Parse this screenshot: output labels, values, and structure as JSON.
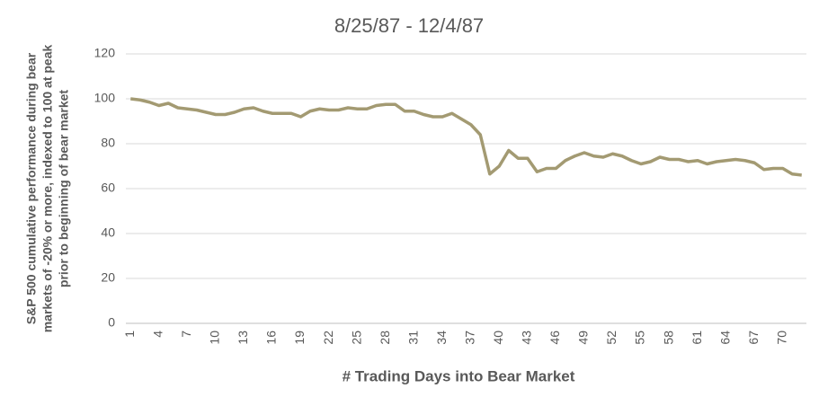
{
  "chart_data": {
    "type": "line",
    "title": "8/25/87 - 12/4/87",
    "x_label": "# Trading Days into Bear Market",
    "y_label": [
      "S&P 500 cumulative performance during bear",
      "markets of -20% or more, indexed to 100 at peak",
      "prior to beginning of bear market"
    ],
    "x": [
      1,
      2,
      3,
      4,
      5,
      6,
      7,
      8,
      9,
      10,
      11,
      12,
      13,
      14,
      15,
      16,
      17,
      18,
      19,
      20,
      21,
      22,
      23,
      24,
      25,
      26,
      27,
      28,
      29,
      30,
      31,
      32,
      33,
      34,
      35,
      36,
      37,
      38,
      39,
      40,
      41,
      42,
      43,
      44,
      45,
      46,
      47,
      48,
      49,
      50,
      51,
      52,
      53,
      54,
      55,
      56,
      57,
      58,
      59,
      60,
      61,
      62,
      63,
      64,
      65,
      66,
      67,
      68,
      69,
      70,
      71,
      72
    ],
    "values": [
      100,
      99.5,
      98.5,
      97,
      98,
      96,
      95.5,
      95,
      94,
      93,
      93,
      94,
      95.5,
      96,
      94.5,
      93.5,
      93.5,
      93.5,
      92,
      94.5,
      95.5,
      95,
      95,
      96,
      95.5,
      95.5,
      97,
      97.5,
      97.5,
      94.5,
      94.5,
      93,
      92,
      92,
      93.5,
      91,
      88.5,
      84,
      66.5,
      70,
      77,
      73.5,
      73.5,
      67.5,
      69,
      69,
      72.5,
      74.5,
      76,
      74.5,
      74,
      75.5,
      74.5,
      72.5,
      71,
      72,
      74,
      73,
      73,
      72,
      72.5,
      71,
      72,
      72.5,
      73,
      72.5,
      71.5,
      68.5,
      69,
      69,
      66.5,
      66
    ],
    "color": "#a39a72",
    "xlim": [
      0.5,
      72.5
    ],
    "xticks": [
      1,
      4,
      7,
      10,
      13,
      16,
      19,
      22,
      25,
      28,
      31,
      34,
      37,
      40,
      43,
      46,
      49,
      52,
      55,
      58,
      61,
      64,
      67,
      70
    ],
    "ylim": [
      0,
      120
    ],
    "yticks": [
      0,
      20,
      40,
      60,
      80,
      100,
      120
    ],
    "grid": true
  }
}
